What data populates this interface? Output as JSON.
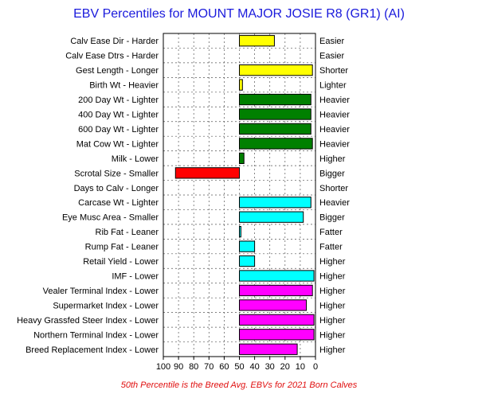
{
  "chart_data": {
    "type": "bar",
    "title": "EBV Percentiles for MOUNT MAJOR JOSIE R8 (GR1) (AI)",
    "footnote": "50th Percentile is the Breed Avg. EBVs for 2021 Born Calves",
    "xlim": [
      100,
      0
    ],
    "baseline": 50,
    "x_ticks": [
      "100",
      "90",
      "80",
      "70",
      "60",
      "50",
      "40",
      "30",
      "20",
      "10",
      "0"
    ],
    "grid": true,
    "traits": [
      {
        "left": "Calv Ease Dir - Harder",
        "right": "Easier",
        "value": 27,
        "color": "#ffff00"
      },
      {
        "left": "Calv Ease Dtrs - Harder",
        "right": "Easier",
        "value": null,
        "color": "#ffff00"
      },
      {
        "left": "Gest Length - Longer",
        "right": "Shorter",
        "value": 2,
        "color": "#ffff00"
      },
      {
        "left": "Birth Wt - Heavier",
        "right": "Lighter",
        "value": 48,
        "color": "#ffff00"
      },
      {
        "left": "200 Day Wt - Lighter",
        "right": "Heavier",
        "value": 3,
        "color": "#008000"
      },
      {
        "left": "400 Day Wt - Lighter",
        "right": "Heavier",
        "value": 3,
        "color": "#008000"
      },
      {
        "left": "600 Day Wt - Lighter",
        "right": "Heavier",
        "value": 3,
        "color": "#008000"
      },
      {
        "left": "Mat Cow Wt - Lighter",
        "right": "Heavier",
        "value": 2,
        "color": "#008000"
      },
      {
        "left": "Milk - Lower",
        "right": "Higher",
        "value": 47,
        "color": "#008000"
      },
      {
        "left": "Scrotal Size - Smaller",
        "right": "Bigger",
        "value": 92,
        "color": "#ff0000"
      },
      {
        "left": "Days to Calv - Longer",
        "right": "Shorter",
        "value": null,
        "color": "#ff0000"
      },
      {
        "left": "Carcase Wt - Lighter",
        "right": "Heavier",
        "value": 3,
        "color": "#00ffff"
      },
      {
        "left": "Eye Musc Area - Smaller",
        "right": "Bigger",
        "value": 8,
        "color": "#00ffff"
      },
      {
        "left": "Rib Fat - Leaner",
        "right": "Fatter",
        "value": 49,
        "color": "#00ffff"
      },
      {
        "left": "Rump Fat - Leaner",
        "right": "Fatter",
        "value": 40,
        "color": "#00ffff"
      },
      {
        "left": "Retail Yield - Lower",
        "right": "Higher",
        "value": 40,
        "color": "#00ffff"
      },
      {
        "left": "IMF - Lower",
        "right": "Higher",
        "value": 1,
        "color": "#00ffff"
      },
      {
        "left": "Vealer Terminal Index - Lower",
        "right": "Higher",
        "value": 2,
        "color": "#ff00ff"
      },
      {
        "left": "Supermarket Index - Lower",
        "right": "Higher",
        "value": 6,
        "color": "#ff00ff"
      },
      {
        "left": "Heavy Grassfed Steer Index - Lower",
        "right": "Higher",
        "value": 1,
        "color": "#ff00ff"
      },
      {
        "left": "Northern Terminal Index - Lower",
        "right": "Higher",
        "value": 1,
        "color": "#ff00ff"
      },
      {
        "left": "Breed Replacement Index - Lower",
        "right": "Higher",
        "value": 12,
        "color": "#ff00ff"
      }
    ]
  }
}
